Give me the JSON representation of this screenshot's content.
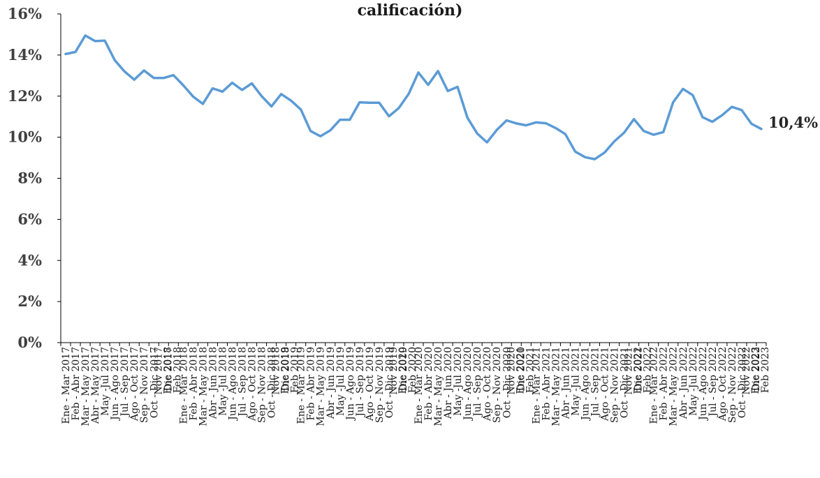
{
  "chart_data": {
    "type": "line",
    "title": "calificación)",
    "xlabel": "",
    "ylabel": "",
    "ylim": [
      0,
      16
    ],
    "y_ticks": [
      "0%",
      "2%",
      "4%",
      "6%",
      "8%",
      "10%",
      "12%",
      "14%",
      "16%"
    ],
    "grid": false,
    "legend": "none",
    "end_label": "10,4%",
    "colors": {
      "line": "#5b9bd5",
      "axis": "#000000"
    },
    "x": [
      "Ene - Mar 2017",
      "Feb - Abr 2017",
      "Mar - May 2017",
      "Abr - May 2017",
      "May -Jul 2017",
      "Jun - Ago 2017",
      "Jul - Sep 2017",
      "Ago - Oct 2017",
      "Sep - Nov 2017",
      "Oct - Dic 2017",
      "Nov 2017 - Ene 2018",
      "Dic 2017 - Feb 2018",
      "Ene - Mar 2018",
      "Feb - Abr 2018",
      "Mar - May 2018",
      "Abr - Jun 2018",
      "May -Jul 2018",
      "Jun - Ago 2018",
      "Jul - Sep 2018",
      "Ago - Oct 2018",
      "Sep - Nov 2018",
      "Oct - Dic 2018",
      "Nov 2018 - Ene 2019",
      "Dic 2018 - Feb 2019",
      "Ene - Mar 2019",
      "Feb - Abr 2019",
      "Mar - May 2019",
      "Abr - Jun 2019",
      "May -Jul 2019",
      "Jun - Ago 2019",
      "Jul - Sep 2019",
      "Ago - Oct 2019",
      "Sep - Nov 2019",
      "Oct - Dic 2019",
      "Nov 2019 - Ene 2020",
      "Dic 2019 - Feb 2020",
      "Ene - Mar 2020",
      "Feb - Abr 2020",
      "Mar - May 2020",
      "Abr - Jun 2020",
      "May -Jul 2020",
      "Jun - Ago 2020",
      "Jul - Sep 2020",
      "Ago - Oct 2020",
      "Sep - Nov 2020",
      "Oct - Dic 2020",
      "Nov 2020 - Ene 2021",
      "Dic 2020 - Feb 2021",
      "Ene - Mar 2021",
      "Feb - Abr 2021",
      "Mar - May 2021",
      "Abr - Jun 2021",
      "May -Jul 2021",
      "Jun - Ago 2021",
      "Jul - Sep 2021",
      "Ago - Oct 2021",
      "Sep - Nov 2021",
      "Oct - Dic 2021",
      "Nov 2021 - Ene 2022",
      "Dic 2021 - Feb 2022",
      "Ene - Mar 2022",
      "Feb - Abr 2022",
      "Mar - May 2022",
      "Abr - Jun 2022",
      "May -Jul 2022",
      "Jun - Ago 2022",
      "Jul - Sep 2022",
      "Ago - Oct 2022",
      "Sep - Nov 2022",
      "Oct - Dic 2022",
      "Nov 2022 - Ene 2023",
      "Dic 2022 - Feb 2023"
    ],
    "series": [
      {
        "values": [
          14.05,
          14.15,
          14.95,
          14.68,
          14.7,
          13.75,
          13.2,
          12.8,
          13.25,
          12.88,
          12.88,
          13.02,
          12.53,
          11.98,
          11.62,
          12.38,
          12.22,
          12.65,
          12.3,
          12.62,
          12.0,
          11.5,
          12.1,
          11.78,
          11.35,
          10.3,
          10.05,
          10.33,
          10.85,
          10.85,
          11.7,
          11.68,
          11.68,
          11.02,
          11.42,
          12.1,
          13.15,
          12.55,
          13.22,
          12.25,
          12.45,
          10.95,
          10.18,
          9.75,
          10.35,
          10.82,
          10.67,
          10.58,
          10.72,
          10.68,
          10.45,
          10.15,
          9.3,
          9.03,
          8.93,
          9.25,
          9.8,
          10.22,
          10.88,
          10.3,
          10.12,
          10.25,
          11.7,
          12.35,
          12.05,
          10.98,
          10.75,
          11.07,
          11.48,
          11.32,
          10.65,
          10.4
        ]
      }
    ]
  }
}
